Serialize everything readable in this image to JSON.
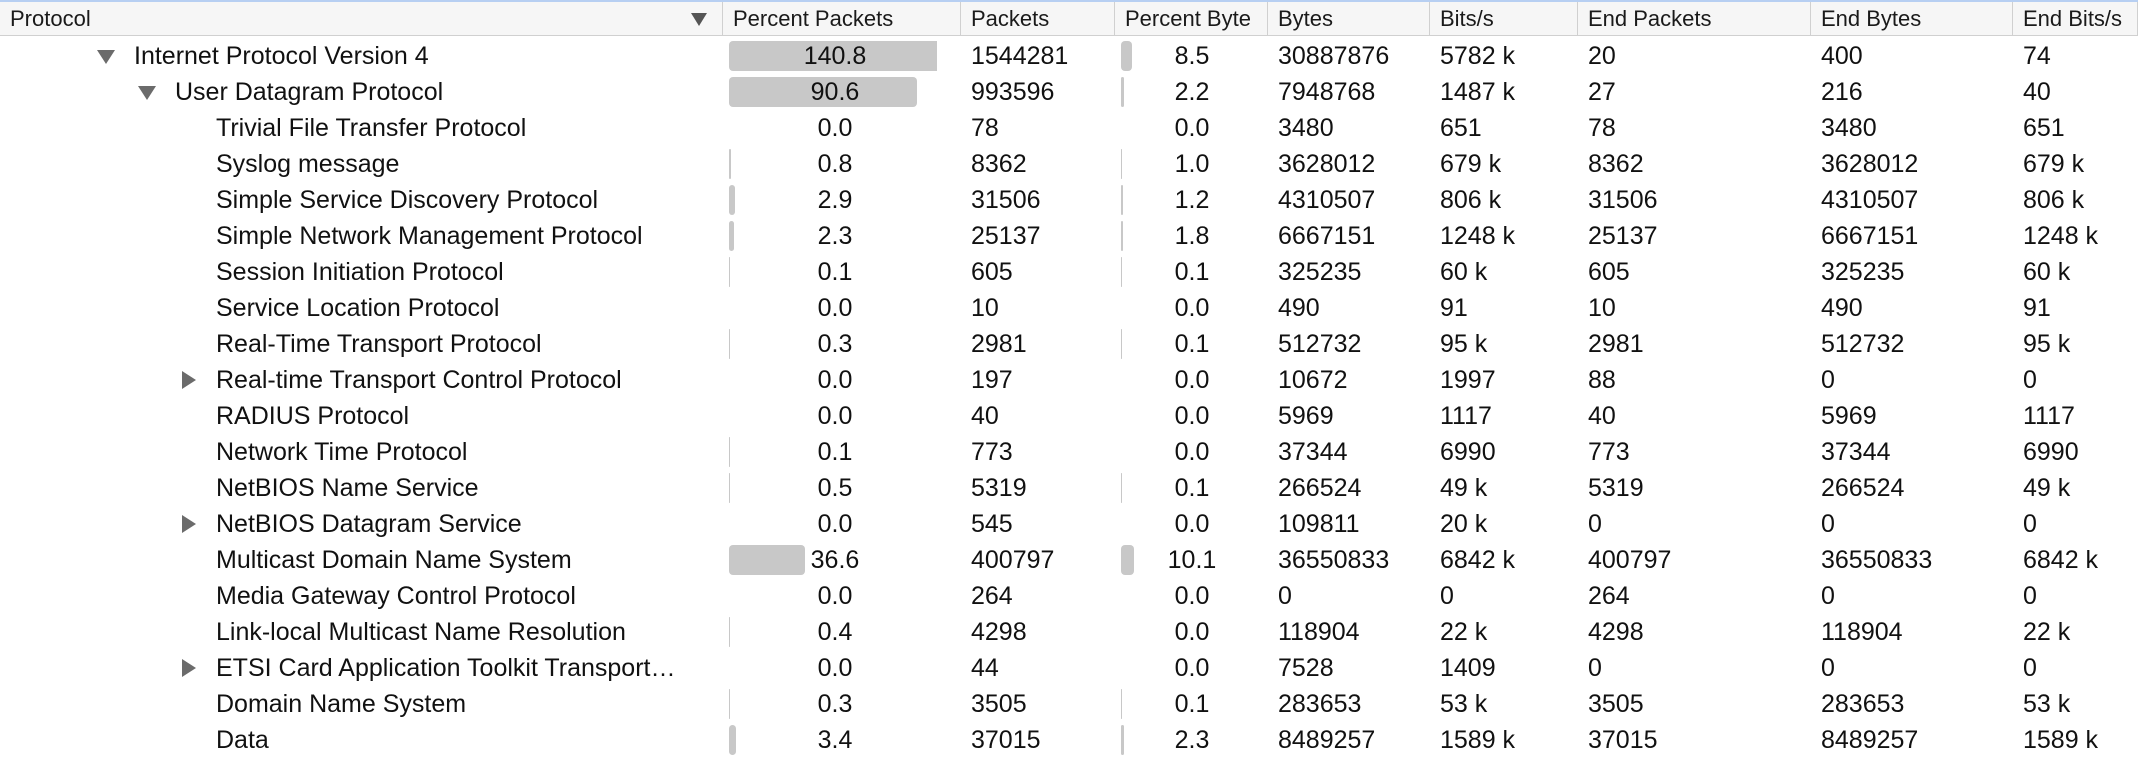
{
  "table": {
    "columns": [
      "Protocol",
      "Percent Packets",
      "Packets",
      "Percent Byte",
      "Bytes",
      "Bits/s",
      "End Packets",
      "End Bytes",
      "End Bits/s"
    ],
    "sort_column": 0,
    "rows": [
      {
        "cells": [
          "Internet Protocol Version 4",
          "140.8",
          "1544281",
          "8.5",
          "30887876",
          "5782 k",
          "20",
          "400",
          "74"
        ],
        "children": [
          {
            "cells": [
              "User Datagram Protocol",
              "90.6",
              "993596",
              "2.2",
              "7948768",
              "1487 k",
              "27",
              "216",
              "40"
            ],
            "children": [
              {
                "cells": [
                  "Trivial File Transfer Protocol",
                  "0.0",
                  "78",
                  "0.0",
                  "3480",
                  "651",
                  "78",
                  "3480",
                  "651"
                ]
              },
              {
                "cells": [
                  "Syslog message",
                  "0.8",
                  "8362",
                  "1.0",
                  "3628012",
                  "679 k",
                  "8362",
                  "3628012",
                  "679 k"
                ]
              },
              {
                "cells": [
                  "Simple Service Discovery Protocol",
                  "2.9",
                  "31506",
                  "1.2",
                  "4310507",
                  "806 k",
                  "31506",
                  "4310507",
                  "806 k"
                ]
              },
              {
                "cells": [
                  "Simple Network Management Protocol",
                  "2.3",
                  "25137",
                  "1.8",
                  "6667151",
                  "1248 k",
                  "25137",
                  "6667151",
                  "1248 k"
                ]
              },
              {
                "cells": [
                  "Session Initiation Protocol",
                  "0.1",
                  "605",
                  "0.1",
                  "325235",
                  "60 k",
                  "605",
                  "325235",
                  "60 k"
                ]
              },
              {
                "cells": [
                  "Service Location Protocol",
                  "0.0",
                  "10",
                  "0.0",
                  "490",
                  "91",
                  "10",
                  "490",
                  "91"
                ]
              },
              {
                "cells": [
                  "Real-Time Transport Protocol",
                  "0.3",
                  "2981",
                  "0.1",
                  "512732",
                  "95 k",
                  "2981",
                  "512732",
                  "95 k"
                ]
              },
              {
                "cells": [
                  "Real-time Transport Control Protocol",
                  "0.0",
                  "197",
                  "0.0",
                  "10672",
                  "1997",
                  "88",
                  "0",
                  "0"
                ],
                "collapsed": true
              },
              {
                "cells": [
                  "RADIUS Protocol",
                  "0.0",
                  "40",
                  "0.0",
                  "5969",
                  "1117",
                  "40",
                  "5969",
                  "1117"
                ]
              },
              {
                "cells": [
                  "Network Time Protocol",
                  "0.1",
                  "773",
                  "0.0",
                  "37344",
                  "6990",
                  "773",
                  "37344",
                  "6990"
                ]
              },
              {
                "cells": [
                  "NetBIOS Name Service",
                  "0.5",
                  "5319",
                  "0.1",
                  "266524",
                  "49 k",
                  "5319",
                  "266524",
                  "49 k"
                ]
              },
              {
                "cells": [
                  "NetBIOS Datagram Service",
                  "0.0",
                  "545",
                  "0.0",
                  "109811",
                  "20 k",
                  "0",
                  "0",
                  "0"
                ],
                "collapsed": true
              },
              {
                "cells": [
                  "Multicast Domain Name System",
                  "36.6",
                  "400797",
                  "10.1",
                  "36550833",
                  "6842 k",
                  "400797",
                  "36550833",
                  "6842 k"
                ]
              },
              {
                "cells": [
                  "Media Gateway Control Protocol",
                  "0.0",
                  "264",
                  "0.0",
                  "0",
                  "0",
                  "264",
                  "0",
                  "0"
                ]
              },
              {
                "cells": [
                  "Link-local Multicast Name Resolution",
                  "0.4",
                  "4298",
                  "0.0",
                  "118904",
                  "22 k",
                  "4298",
                  "118904",
                  "22 k"
                ]
              },
              {
                "cells": [
                  "ETSI Card Application Toolkit Transport…",
                  "0.0",
                  "44",
                  "0.0",
                  "7528",
                  "1409",
                  "0",
                  "0",
                  "0"
                ],
                "collapsed": true
              },
              {
                "cells": [
                  "Domain Name System",
                  "0.3",
                  "3505",
                  "0.1",
                  "283653",
                  "53 k",
                  "3505",
                  "283653",
                  "53 k"
                ]
              },
              {
                "cells": [
                  "Data",
                  "3.4",
                  "37015",
                  "2.3",
                  "8489257",
                  "1589 k",
                  "37015",
                  "8489257",
                  "1589 k"
                ]
              }
            ]
          }
        ]
      }
    ]
  }
}
